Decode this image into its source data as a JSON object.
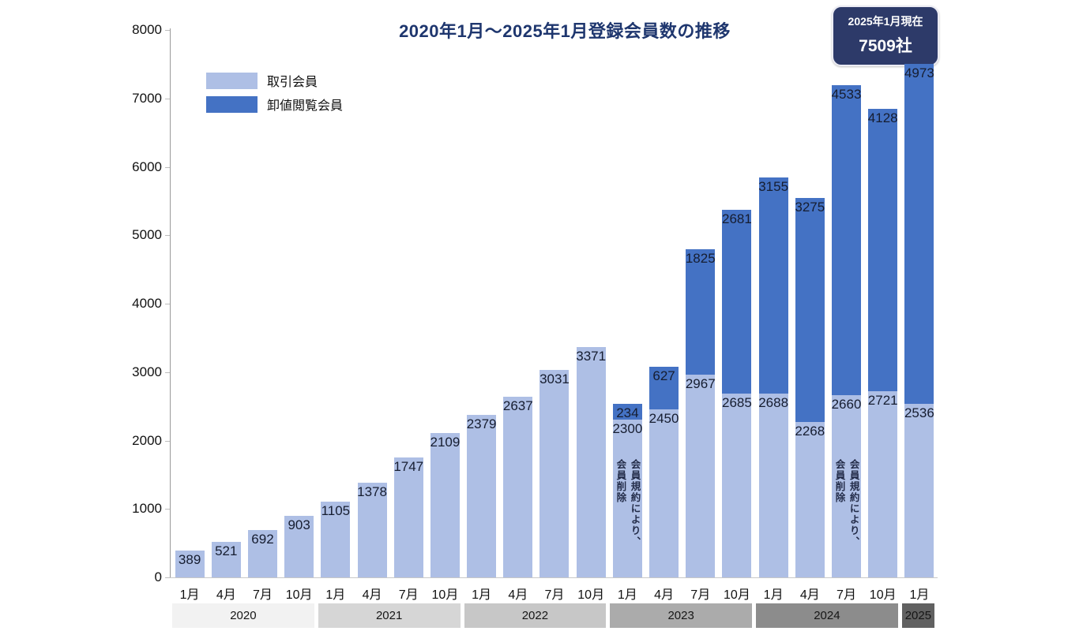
{
  "title": "2020年1月〜2025年1月登録会員数の推移",
  "badge": {
    "line1": "2025年1月現在",
    "line2": "7509社"
  },
  "legend": [
    {
      "label": "取引会員",
      "color": "#aebfe5"
    },
    {
      "label": "卸値閲覧会員",
      "color": "#4472c4"
    }
  ],
  "chart_data": {
    "type": "bar",
    "stacked": true,
    "title": "2020年1月〜2025年1月登録会員数の推移",
    "xlabel": "",
    "ylabel": "",
    "ylim": [
      0,
      8000
    ],
    "y_ticks": [
      "0",
      "1000",
      "2000",
      "3000",
      "4000",
      "5000",
      "6000",
      "7000",
      "8000"
    ],
    "grid": false,
    "legend_position": "top-left",
    "series_names": [
      "取引会員",
      "卸値閲覧会員"
    ],
    "series_colors": {
      "light": "#aebfe5",
      "dark": "#4472c4"
    },
    "note_text": "会員規約により、\n会員削除",
    "years": [
      {
        "label": "2020",
        "span": 4,
        "color": "#f2f2f2"
      },
      {
        "label": "2021",
        "span": 4,
        "color": "#d6d6d6"
      },
      {
        "label": "2022",
        "span": 4,
        "color": "#c7c7c7"
      },
      {
        "label": "2023",
        "span": 4,
        "color": "#ababab"
      },
      {
        "label": "2024",
        "span": 4,
        "color": "#8c8c8c"
      },
      {
        "label": "2025",
        "span": 1,
        "color": "#616161"
      }
    ],
    "bars": [
      {
        "month": "1月",
        "light": 389,
        "dark": 0
      },
      {
        "month": "4月",
        "light": 521,
        "dark": 0
      },
      {
        "month": "7月",
        "light": 692,
        "dark": 0
      },
      {
        "month": "10月",
        "light": 903,
        "dark": 0
      },
      {
        "month": "1月",
        "light": 1105,
        "dark": 0
      },
      {
        "month": "4月",
        "light": 1378,
        "dark": 0
      },
      {
        "month": "7月",
        "light": 1747,
        "dark": 0
      },
      {
        "month": "10月",
        "light": 2109,
        "dark": 0
      },
      {
        "month": "1月",
        "light": 2379,
        "dark": 0
      },
      {
        "month": "4月",
        "light": 2637,
        "dark": 0
      },
      {
        "month": "7月",
        "light": 3031,
        "dark": 0
      },
      {
        "month": "10月",
        "light": 3371,
        "dark": 0
      },
      {
        "month": "1月",
        "light": 2300,
        "dark": 234,
        "note": true
      },
      {
        "month": "4月",
        "light": 2450,
        "dark": 627
      },
      {
        "month": "7月",
        "light": 2967,
        "dark": 1825
      },
      {
        "month": "10月",
        "light": 2685,
        "dark": 2681
      },
      {
        "month": "1月",
        "light": 2688,
        "dark": 3155
      },
      {
        "month": "4月",
        "light": 2268,
        "dark": 3275
      },
      {
        "month": "7月",
        "light": 2660,
        "dark": 4533,
        "note": true
      },
      {
        "month": "10月",
        "light": 2721,
        "dark": 4128
      },
      {
        "month": "1月",
        "light": 2536,
        "dark": 4973
      }
    ]
  }
}
